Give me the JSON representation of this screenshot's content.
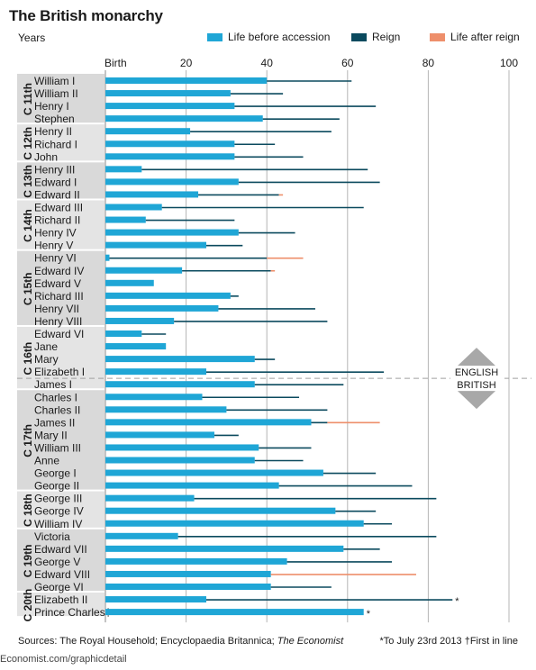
{
  "header": {
    "title": "The British monarchy",
    "subtitle": "Years"
  },
  "legend": [
    {
      "label": "Life before accession",
      "color": "#1fa6d6"
    },
    {
      "label": "Reign",
      "color": "#0b4a5e"
    },
    {
      "label": "Life after reign",
      "color": "#ee8f6b"
    }
  ],
  "colors": {
    "before": "#1fa6d6",
    "reign": "#0b4a5e",
    "after": "#ee8f6b",
    "band": "#d9d9d9",
    "grid": "#b5b5b5",
    "arrow": "#a8a8a8"
  },
  "chart_data": {
    "type": "bar",
    "stacked": true,
    "orientation": "horizontal",
    "xlim": [
      0,
      100
    ],
    "x_ticks": [
      {
        "value": 0,
        "label": "Birth"
      },
      {
        "value": 20,
        "label": "20"
      },
      {
        "value": 40,
        "label": "40"
      },
      {
        "value": 60,
        "label": "60"
      },
      {
        "value": 80,
        "label": "80"
      },
      {
        "value": 100,
        "label": "100"
      }
    ],
    "grid": true,
    "legend_position": "top",
    "categories": [
      "William I",
      "William II",
      "Henry I",
      "Stephen",
      "Henry II",
      "Richard I",
      "John",
      "Henry III",
      "Edward I",
      "Edward II",
      "Edward III",
      "Richard II",
      "Henry IV",
      "Henry V",
      "Henry VI",
      "Edward IV",
      "Edward V",
      "Richard III",
      "Henry VII",
      "Henry VIII",
      "Edward VI",
      "Jane",
      "Mary",
      "Elizabeth I",
      "James I",
      "Charles I",
      "Charles II",
      "James II",
      "Mary II",
      "William III",
      "Anne",
      "George I",
      "George II",
      "George III",
      "George IV",
      "William IV",
      "Victoria",
      "Edward VII",
      "George V",
      "Edward VIII",
      "George VI",
      "Elizabeth II",
      "Prince Charles†"
    ],
    "series": [
      {
        "name": "Life before accession",
        "values": [
          40,
          31,
          32,
          39,
          21,
          32,
          32,
          9,
          33,
          23,
          14,
          10,
          33,
          25,
          1,
          19,
          12,
          31,
          28,
          17,
          9,
          15,
          37,
          25,
          37,
          24,
          30,
          51,
          27,
          38,
          37,
          54,
          43,
          22,
          57,
          64,
          18,
          59,
          45,
          41,
          41,
          25,
          64
        ]
      },
      {
        "name": "Reign",
        "values": [
          21,
          13,
          35,
          19,
          35,
          10,
          17,
          56,
          35,
          20,
          50,
          22,
          14,
          9,
          39,
          22,
          0,
          2,
          24,
          38,
          6,
          0,
          5,
          44,
          22,
          24,
          25,
          4,
          6,
          13,
          12,
          13,
          33,
          60,
          10,
          7,
          64,
          9,
          26,
          0,
          15,
          61,
          0
        ]
      },
      {
        "name": "Life after reign",
        "values": [
          0,
          0,
          0,
          0,
          0,
          0,
          0,
          0,
          0,
          1,
          0,
          0,
          0,
          0,
          9,
          1,
          0,
          0,
          0,
          0,
          0,
          0,
          0,
          0,
          0,
          0,
          0,
          13,
          0,
          0,
          0,
          0,
          0,
          0,
          0,
          0,
          0,
          0,
          0,
          36,
          0,
          0,
          0
        ]
      }
    ],
    "marked": [
      "Elizabeth II",
      "Prince Charles†"
    ],
    "mark_symbol": "*",
    "centuries": [
      {
        "label": "C 11th",
        "start": 0,
        "count": 4
      },
      {
        "label": "C 12th",
        "start": 4,
        "count": 3
      },
      {
        "label": "C 13th",
        "start": 7,
        "count": 3
      },
      {
        "label": "C 14th",
        "start": 10,
        "count": 4
      },
      {
        "label": "C 15th",
        "start": 14,
        "count": 6
      },
      {
        "label": "C 16th",
        "start": 20,
        "count": 5
      },
      {
        "label": "C 17th",
        "start": 25,
        "count": 8
      },
      {
        "label": "C 18th",
        "start": 33,
        "count": 3
      },
      {
        "label": "C 19th",
        "start": 36,
        "count": 5
      },
      {
        "label": "C 20th",
        "start": 41,
        "count": 2
      }
    ],
    "divider": {
      "after_index": 23,
      "upper_label": "ENGLISH",
      "lower_label": "BRITISH"
    }
  },
  "footer": {
    "sources_prefix": "Sources: The Royal Household; Encyclopaedia Britannica; ",
    "sources_italic": "The Economist",
    "note": "*To July 23rd 2013   †First in line",
    "url": "Economist.com/graphicdetail"
  }
}
